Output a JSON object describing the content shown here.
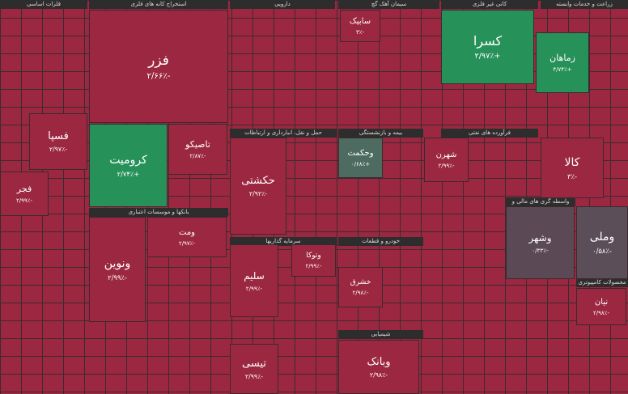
{
  "sectors": [
    "استخراج کانه های فلزی",
    "دارویی",
    "سیمان آهک گچ",
    "کانی غیر فلزی",
    "زراعت و خدمات وابسته",
    "حمل و نقل، انبارداری و ارتباطات",
    "بیمه و بازنشستگی",
    "فرآورده های نفتی",
    "بانکها و موسسات اعتباری",
    "واسطه گری های مالی و پولی",
    "سرمایه گذاریها",
    "خودرو و قطعات",
    "محصولات کامپیوتری",
    "شیمیایی",
    "فلزات اساسی"
  ],
  "tiles": [
    {
      "label": "فزر",
      "change": "-۲/۶۶٪"
    },
    {
      "label": "کسرا",
      "change": "+۲/۹۷٪"
    },
    {
      "label": "زماهان",
      "change": "+۴/۷۴٪"
    },
    {
      "label": "کرومیت",
      "change": "+۲/۷۴٪"
    },
    {
      "label": "تاصیکو",
      "change": "-۲/۸۷٪"
    },
    {
      "label": "فسپا",
      "change": "-۲/۹۷٪"
    },
    {
      "label": "حکشتی",
      "change": "-۲/۹۲٪"
    },
    {
      "label": "وحکمت",
      "change": "+۰/۶۸٪"
    },
    {
      "label": "کالا",
      "change": "-۳٪"
    },
    {
      "label": "ونوین",
      "change": "-۲/۹۹٪"
    },
    {
      "label": "وشهر",
      "change": "-۰/۳۳٪"
    },
    {
      "label": "وملی",
      "change": "-۰/۵۸٪"
    },
    {
      "label": "سلیم",
      "change": "-۲/۹۹٪"
    },
    {
      "label": "تیسی",
      "change": "-۲/۹۹٪"
    },
    {
      "label": "وبانک",
      "change": "-۲/۹۸٪"
    },
    {
      "label": "فجر",
      "change": "-۲/۹۹٪"
    },
    {
      "label": "شهرن",
      "change": "-۲/۹۹٪"
    },
    {
      "label": "نیان",
      "change": "-۲/۹۸٪"
    },
    {
      "label": "ومت",
      "change": "-۲/۹۷٪"
    },
    {
      "label": "خشرق",
      "change": "-۲/۹۸٪"
    },
    {
      "label": "سابیک",
      "change": "-۳٪"
    },
    {
      "label": "وتوکا",
      "change": "-۲/۹۹٪"
    }
  ]
}
